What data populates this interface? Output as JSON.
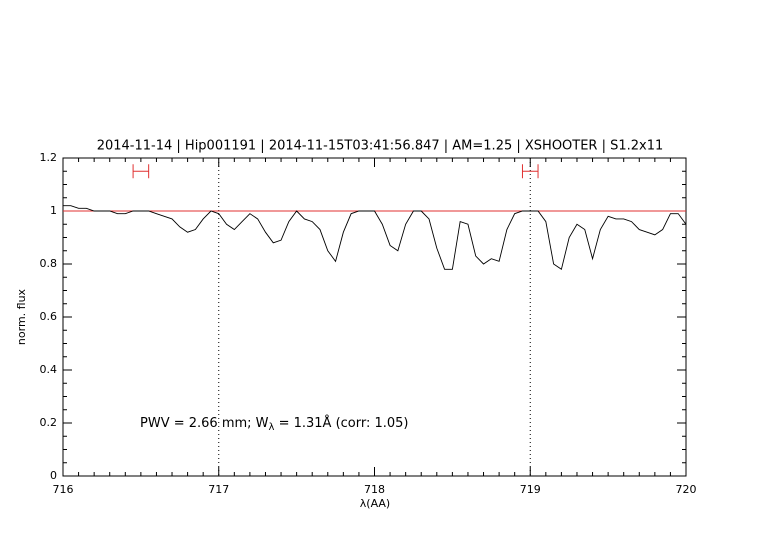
{
  "chart_data": {
    "type": "line",
    "title": "2014-11-14 | Hip001191 | 2014-11-15T03:41:56.847 | AM=1.25 | XSHOOTER | S1.2x11",
    "x_label": "λ(AA)",
    "y_label": "norm. flux",
    "annotation": {
      "parts": [
        "PWV = 2.66 mm; W",
        "λ",
        " = 1.31Å (corr: 1.05)"
      ],
      "color": "#0000ff"
    },
    "title_color": "#0000ff",
    "xlim": [
      716,
      720
    ],
    "ylim": [
      0,
      1.2
    ],
    "xticks": [
      716,
      717,
      718,
      719,
      720
    ],
    "yticks": [
      0,
      0.2,
      0.4,
      0.6,
      0.8,
      1,
      1.2
    ],
    "vlines": [
      717,
      719
    ],
    "hline": 1,
    "hline_color": "#e03030",
    "error_markers": {
      "y": 1.15,
      "ranges": [
        [
          716.45,
          716.55
        ],
        [
          718.95,
          719.05
        ]
      ],
      "color": "#e03030"
    },
    "x": [
      716.0,
      716.05,
      716.1,
      716.15,
      716.2,
      716.25,
      716.3,
      716.35,
      716.4,
      716.45,
      716.5,
      716.55,
      716.6,
      716.65,
      716.7,
      716.75,
      716.8,
      716.85,
      716.9,
      716.95,
      717.0,
      717.05,
      717.1,
      717.15,
      717.2,
      717.25,
      717.3,
      717.35,
      717.4,
      717.45,
      717.5,
      717.55,
      717.6,
      717.65,
      717.7,
      717.75,
      717.8,
      717.85,
      717.9,
      717.95,
      718.0,
      718.05,
      718.1,
      718.15,
      718.2,
      718.25,
      718.3,
      718.35,
      718.4,
      718.45,
      718.5,
      718.55,
      718.6,
      718.65,
      718.7,
      718.75,
      718.8,
      718.85,
      718.9,
      718.95,
      719.0,
      719.05,
      719.1,
      719.15,
      719.2,
      719.25,
      719.3,
      719.35,
      719.4,
      719.45,
      719.5,
      719.55,
      719.6,
      719.65,
      719.7,
      719.75,
      719.8,
      719.85,
      719.9,
      719.95,
      720.0
    ],
    "series": [
      {
        "color": "#000000",
        "values": [
          1.02,
          1.02,
          1.01,
          1.01,
          1.0,
          1.0,
          1.0,
          0.99,
          0.99,
          1.0,
          1.0,
          1.0,
          0.99,
          0.98,
          0.97,
          0.94,
          0.92,
          0.93,
          0.97,
          1.0,
          0.99,
          0.95,
          0.93,
          0.96,
          0.99,
          0.97,
          0.92,
          0.88,
          0.89,
          0.96,
          1.0,
          0.97,
          0.96,
          0.93,
          0.85,
          0.81,
          0.92,
          0.99,
          1.0,
          1.0,
          1.0,
          0.95,
          0.87,
          0.85,
          0.95,
          1.0,
          1.0,
          0.97,
          0.86,
          0.78,
          0.78,
          0.96,
          0.95,
          0.83,
          0.8,
          0.82,
          0.81,
          0.93,
          0.99,
          1.0,
          1.0,
          1.0,
          0.96,
          0.8,
          0.78,
          0.9,
          0.95,
          0.93,
          0.82,
          0.93,
          0.98,
          0.97,
          0.97,
          0.96,
          0.93,
          0.92,
          0.91,
          0.93,
          0.99,
          0.99,
          0.95
        ]
      }
    ]
  }
}
